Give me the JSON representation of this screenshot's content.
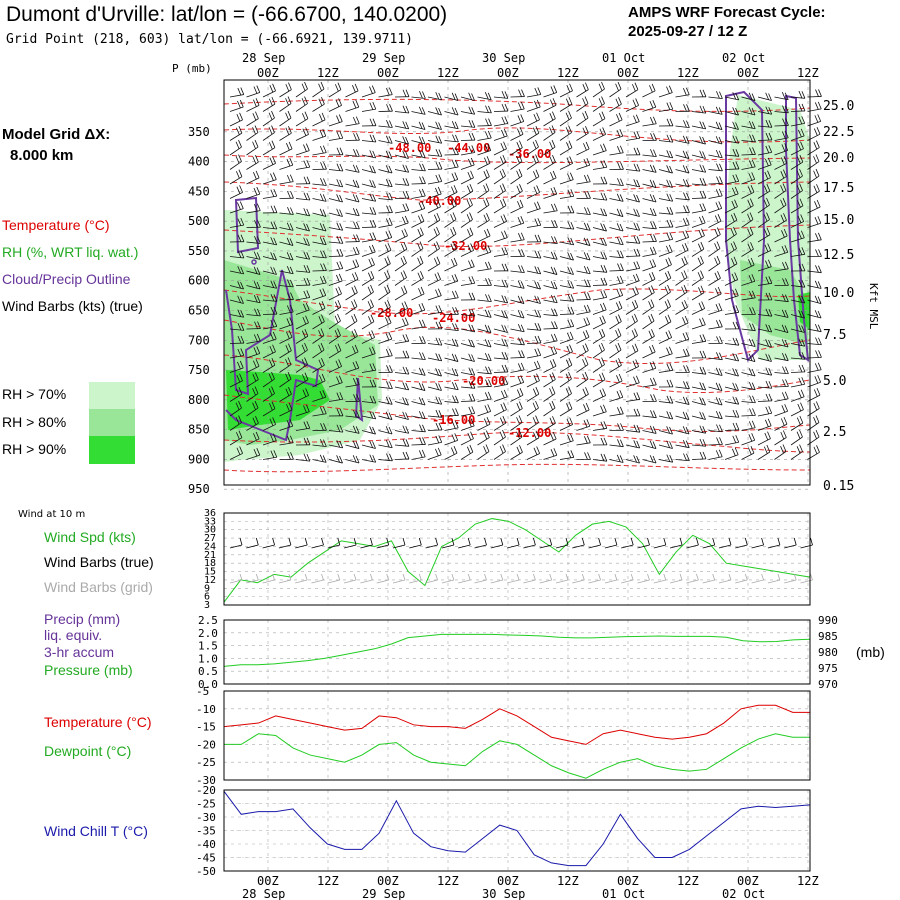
{
  "header": {
    "title": "Dumont d'Urville:  lat/lon = (-66.6700, 140.0200)",
    "grid_point": "Grid Point (218, 603) lat/lon = (-66.6921, 139.9711)",
    "cycle_line1": "AMPS WRF Forecast Cycle:",
    "cycle_line2": "2025-09-27 / 12  Z"
  },
  "side": {
    "model_grid_label": "Model Grid ΔX:",
    "model_grid_value": "8.000 km",
    "temperature": "Temperature (°C)",
    "rh": "RH (%, WRT liq. wat.)",
    "cloud": "Cloud/Precip Outline",
    "wind_barbs": "Wind Barbs (kts) (true)",
    "rh70": "RH > 70%",
    "rh80": "RH > 80%",
    "rh90": "RH > 90%",
    "wind10m": "Wind at 10 m",
    "wind_spd": "Wind Spd (kts)",
    "barbs_true": "Wind Barbs (true)",
    "barbs_grid": "Wind Barbs (grid)",
    "precip1": "Precip (mm)",
    "precip2": "liq. equiv.",
    "precip3": "3-hr accum",
    "pressure": "Pressure (mb)",
    "pressure_unit": "(mb)",
    "temp2": "Temperature (°C)",
    "dew": "Dewpoint (°C)",
    "windchill": "Wind Chill T (°C)",
    "p_axis": "P (mb)",
    "kft_axis": "Kft MSL"
  },
  "colors": {
    "temperature": "#dd0000",
    "rh": "#22cc22",
    "cloud": "#663399",
    "windchill": "#1a1aaa",
    "rh70": "#ccf5cc",
    "rh80": "#99e699",
    "rh90": "#33dd33"
  },
  "chart_data": [
    {
      "type": "time-height cross section",
      "time_ticks": [
        "00Z",
        "12Z",
        "00Z",
        "12Z",
        "00Z",
        "12Z",
        "00Z",
        "12Z",
        "00Z",
        "12Z"
      ],
      "date_ticks": [
        "28 Sep",
        "29 Sep",
        "30 Sep",
        "01 Oct",
        "02 Oct"
      ],
      "p_levels": [
        350,
        400,
        450,
        500,
        550,
        600,
        650,
        700,
        750,
        800,
        850,
        900,
        950
      ],
      "height_kft_ticks": [
        "25.0",
        "22.5",
        "20.0",
        "17.5",
        "15.0",
        "12.5",
        "10.0",
        "7.5",
        "5.0",
        "2.5",
        "0.15"
      ],
      "temp_contour_labels": [
        "-48.00",
        "-44.00",
        "-36.00",
        "-40.00",
        "-32.00",
        "-28.00",
        "-24.00",
        "-20.00",
        "-16.00",
        "-12.00"
      ],
      "rh_thresholds": [
        70,
        80,
        90
      ]
    },
    {
      "type": "line",
      "title": "Wind at 10 m",
      "y_ticks": [
        36,
        33,
        30,
        27,
        24,
        21,
        18,
        15,
        12,
        9,
        6,
        3
      ],
      "ylim": [
        3,
        36
      ],
      "series": [
        {
          "name": "Wind Spd (kts)",
          "values": [
            4,
            12,
            11,
            14,
            13,
            18,
            22,
            26,
            25,
            24,
            26,
            15,
            10,
            24,
            27,
            32,
            34,
            33,
            30,
            26,
            22,
            28,
            32,
            33,
            31,
            25,
            14,
            22,
            28,
            25,
            18,
            17,
            16,
            15,
            14,
            13
          ]
        }
      ]
    },
    {
      "type": "line",
      "y_ticks_left": [
        "2.5",
        "2.0",
        "1.5",
        "1.0",
        "0.5",
        "0.0"
      ],
      "y_ticks_right": [
        "990",
        "985",
        "980",
        "975",
        "970"
      ],
      "left_ylim": [
        0,
        2.5
      ],
      "right_ylim": [
        970,
        990
      ],
      "series": [
        {
          "name": "Pressure (mb)",
          "values": [
            975.5,
            976,
            976,
            976.3,
            976.8,
            977.3,
            978,
            979,
            980,
            981,
            982.5,
            984.5,
            985,
            985.5,
            985.5,
            985.5,
            985.5,
            985.3,
            985.2,
            985,
            984.6,
            984.4,
            984.4,
            984.6,
            984.8,
            984.9,
            985,
            984.9,
            984.9,
            984.9,
            984.6,
            983.5,
            983.2,
            983.3,
            983.8,
            984
          ]
        }
      ]
    },
    {
      "type": "line",
      "y_ticks": [
        -5,
        -10,
        -15,
        -20,
        -25,
        -30
      ],
      "ylim": [
        -30,
        -5
      ],
      "series": [
        {
          "name": "Temperature (°C)",
          "values": [
            -15,
            -14.5,
            -14,
            -12,
            -13,
            -14,
            -15,
            -16,
            -15.5,
            -12,
            -12.5,
            -14.5,
            -15,
            -15,
            -15.5,
            -13,
            -10,
            -12,
            -15,
            -18,
            -19,
            -20,
            -17,
            -16,
            -17,
            -18,
            -18.5,
            -18,
            -17,
            -14,
            -10,
            -9,
            -9,
            -11,
            -11
          ]
        },
        {
          "name": "Dewpoint (°C)",
          "values": [
            -20,
            -20,
            -17,
            -17.5,
            -21,
            -23,
            -24,
            -25,
            -23,
            -20,
            -19.5,
            -23,
            -25,
            -25.5,
            -26,
            -22,
            -19,
            -20,
            -23,
            -26,
            -28,
            -29.5,
            -27,
            -25,
            -24,
            -26,
            -27,
            -27.5,
            -27,
            -24,
            -21,
            -18.5,
            -17,
            -18,
            -18
          ]
        }
      ]
    },
    {
      "type": "line",
      "y_ticks": [
        -20,
        -25,
        -30,
        -35,
        -40,
        -45,
        -50
      ],
      "ylim": [
        -50,
        -20
      ],
      "series": [
        {
          "name": "Wind Chill T (°C)",
          "values": [
            -20.5,
            -29,
            -28,
            -28,
            -27,
            -34,
            -40,
            -42,
            -42,
            -36,
            -24,
            -36,
            -41,
            -42.5,
            -43,
            -38,
            -33,
            -35,
            -44,
            -47,
            -48,
            -48,
            -40,
            -29,
            -38,
            -45,
            -45,
            -42,
            -37,
            -32,
            -27,
            -26,
            -26.5,
            -26,
            -25.5
          ]
        }
      ]
    }
  ]
}
